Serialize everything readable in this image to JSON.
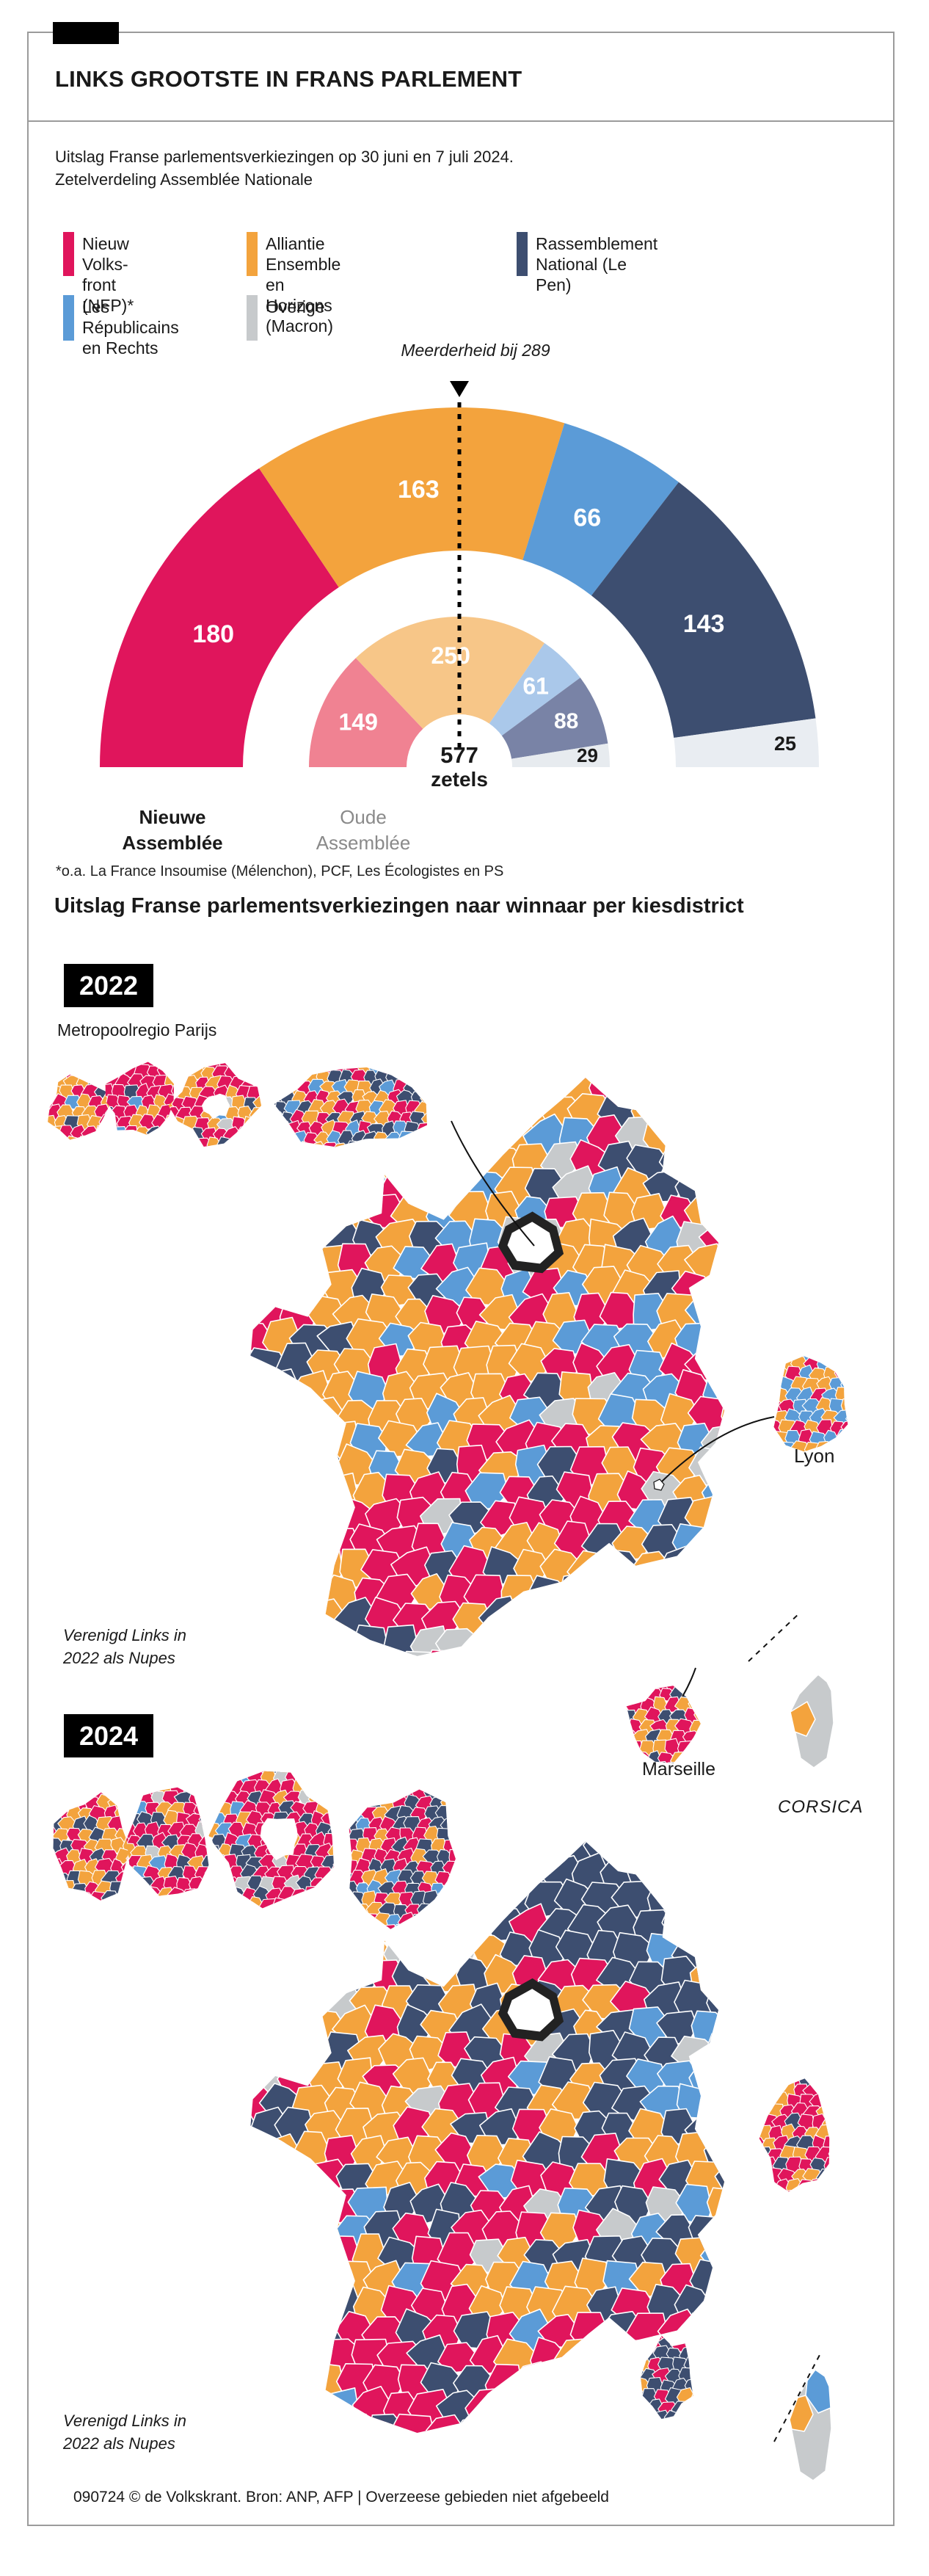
{
  "header": {
    "title": "LINKS GROOTSTE IN FRANS PARLEMENT",
    "subtitle": "Uitslag Franse parlementsverkiezingen op 30 juni en 7 juli 2024.\nZetelverdeling Assemblée Nationale"
  },
  "palette": {
    "nfp": "#e0155c",
    "ensemble": "#f3a33d",
    "lr": "#5b9bd7",
    "rn": "#3d4e70",
    "overige": "#c7cacc",
    "pale": "#e9edf2",
    "inner": {
      "nfp": "#f08292",
      "ensemble": "#f7c688",
      "lr": "#aac8ea",
      "rn": "#7983a6",
      "overige": "#e7ebef"
    }
  },
  "legend": [
    {
      "key": "nfp",
      "label": "Nieuw Volks-\nfront (NFP)*"
    },
    {
      "key": "ensemble",
      "label": "Alliantie Ensemble\nen Horizons (Macron)"
    },
    {
      "key": "rn",
      "label": "Rassemblement\nNational (Le Pen)"
    },
    {
      "key": "lr",
      "label": "Les\nRépublicains\nen Rechts"
    },
    {
      "key": "overige",
      "label": "Overige"
    }
  ],
  "chart_data": [
    {
      "type": "pie",
      "variant": "semicircle-double-ring",
      "title": "Zetelverdeling Assemblée Nationale",
      "unit": "zetels",
      "total": 577,
      "majority": 289,
      "annotation": "Meerderheid bij 289",
      "categories": [
        "Nieuw Volksfront (NFP)",
        "Alliantie Ensemble en Horizons (Macron)",
        "Les Républicains en Rechts",
        "Rassemblement National (Le Pen)",
        "Overige"
      ],
      "category_keys": [
        "nfp",
        "ensemble",
        "lr",
        "rn",
        "overige"
      ],
      "series": [
        {
          "name": "Nieuwe Assemblée",
          "values": [
            180,
            163,
            66,
            143,
            25
          ]
        },
        {
          "name": "Oude Assemblée",
          "values": [
            149,
            250,
            61,
            88,
            29
          ]
        }
      ],
      "center_label": {
        "value": "577",
        "unit": "zetels"
      }
    },
    {
      "type": "heatmap",
      "subtype": "choropleth-winner-per-district",
      "year": "2022",
      "title": "Uitslag Franse parlementsverkiezingen naar winnaar per kiesdistrict",
      "labels": {
        "metro": "Metropoolregio Parijs",
        "lyon": "Lyon",
        "marseille": "Marseille",
        "corsica": "CORSICA",
        "note": "Verenigd Links in\n2022 als Nupes"
      },
      "approx_color_mix": {
        "ensemble": 0.38,
        "nfp": 0.24,
        "lr": 0.16,
        "rn": 0.14,
        "overige": 0.08
      }
    },
    {
      "type": "heatmap",
      "subtype": "choropleth-winner-per-district",
      "year": "2024",
      "labels": {
        "note": "Verenigd Links in\n2022 als Nupes"
      },
      "approx_color_mix": {
        "rn": 0.36,
        "ensemble": 0.25,
        "nfp": 0.24,
        "lr": 0.08,
        "overige": 0.07
      }
    }
  ],
  "section": {
    "title": "Uitslag Franse parlementsverkiezingen naar winnaar per kiesdistrict"
  },
  "assembly_labels": {
    "new": "Nieuwe\nAssemblée",
    "old": "Oude\nAssemblée"
  },
  "footnote": "*o.a. La France Insoumise (Mélenchon), PCF, Les Écologistes en PS",
  "footer": "090724 © de Volkskrant. Bron: ANP, AFP | Overzeese gebieden niet afgebeeld"
}
